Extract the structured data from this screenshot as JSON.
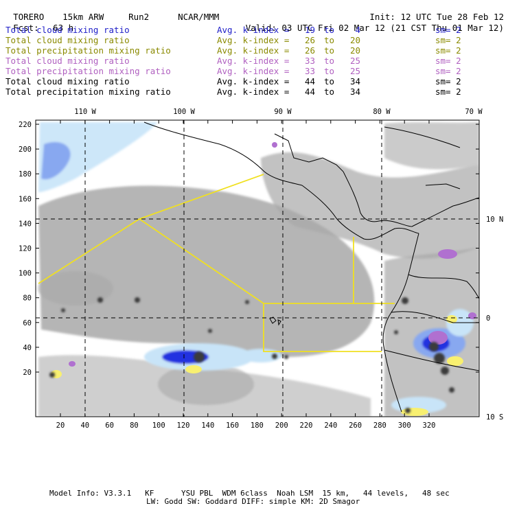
{
  "header": {
    "model": "TORERO",
    "grid": "15km ARW",
    "run": "Run2",
    "org": "NCAR/MMM",
    "init": "Init: 12 UTC Tue 28 Feb 12",
    "fcst_label": "Fcst:",
    "fcst_value": "63 h",
    "valid": "Valid: 03 UTC Fri 02 Mar 12 (21 CST Thu 01 Mar 12)"
  },
  "legend": [
    {
      "field": "Total cloud mixing ratio",
      "kindex": "Avg. k-index =",
      "from": "19",
      "to_word": "to",
      "to": "4",
      "sm": "sm= 2",
      "color": "#2020c8"
    },
    {
      "field": "Total cloud mixing ratio",
      "kindex": "Avg. k-index =",
      "from": "26",
      "to_word": "to",
      "to": "20",
      "sm": "sm= 2",
      "color": "#8a8a00"
    },
    {
      "field": "Total precipitation mixing ratio",
      "kindex": "Avg. k-index =",
      "from": "26",
      "to_word": "to",
      "to": "20",
      "sm": "sm= 2",
      "color": "#8a8a00"
    },
    {
      "field": "Total cloud mixing ratio",
      "kindex": "Avg. k-index =",
      "from": "33",
      "to_word": "to",
      "to": "25",
      "sm": "sm= 2",
      "color": "#b060c0"
    },
    {
      "field": "Total precipitation mixing ratio",
      "kindex": "Avg. k-index =",
      "from": "33",
      "to_word": "to",
      "to": "25",
      "sm": "sm= 2",
      "color": "#b060c0"
    },
    {
      "field": "Total cloud mixing ratio",
      "kindex": "Avg. k-index =",
      "from": "44",
      "to_word": "to",
      "to": "34",
      "sm": "sm= 2",
      "color": "#000000"
    },
    {
      "field": "Total precipitation mixing ratio",
      "kindex": "Avg. k-index =",
      "from": "44",
      "to_word": "to",
      "to": "34",
      "sm": "sm= 2",
      "color": "#000000"
    }
  ],
  "axes": {
    "top_lon_labels": [
      "110 W",
      "100 W",
      "90 W",
      "80 W",
      "70 W"
    ],
    "right_lat_labels": [
      "10 N",
      "0",
      "10 S"
    ],
    "left_grid_labels": [
      "220",
      "200",
      "180",
      "160",
      "140",
      "120",
      "100",
      "80",
      "60",
      "40",
      "20"
    ],
    "bottom_grid_labels": [
      "20",
      "40",
      "60",
      "80",
      "100",
      "120",
      "140",
      "160",
      "180",
      "200",
      "220",
      "240",
      "260",
      "280",
      "300",
      "320"
    ]
  },
  "colors": {
    "gray_cloud": "#a8a8a8",
    "dark_core": "#3a3a3a",
    "light_blue": "#c8e4f8",
    "mid_blue": "#88a8f0",
    "deep_blue": "#2030e0",
    "yellow": "#f8f070",
    "purple": "#b070d0",
    "domain_line": "#f0e020",
    "coast": "#000000"
  },
  "footer": {
    "line1": "Model Info: V3.3.1   KF      YSU PBL  WDM 6class  Noah LSM  15 km,   44 levels,   48 sec",
    "line2": "LW: Godd SW: Goddard DIFF: simple KM: 2D Smagor"
  }
}
